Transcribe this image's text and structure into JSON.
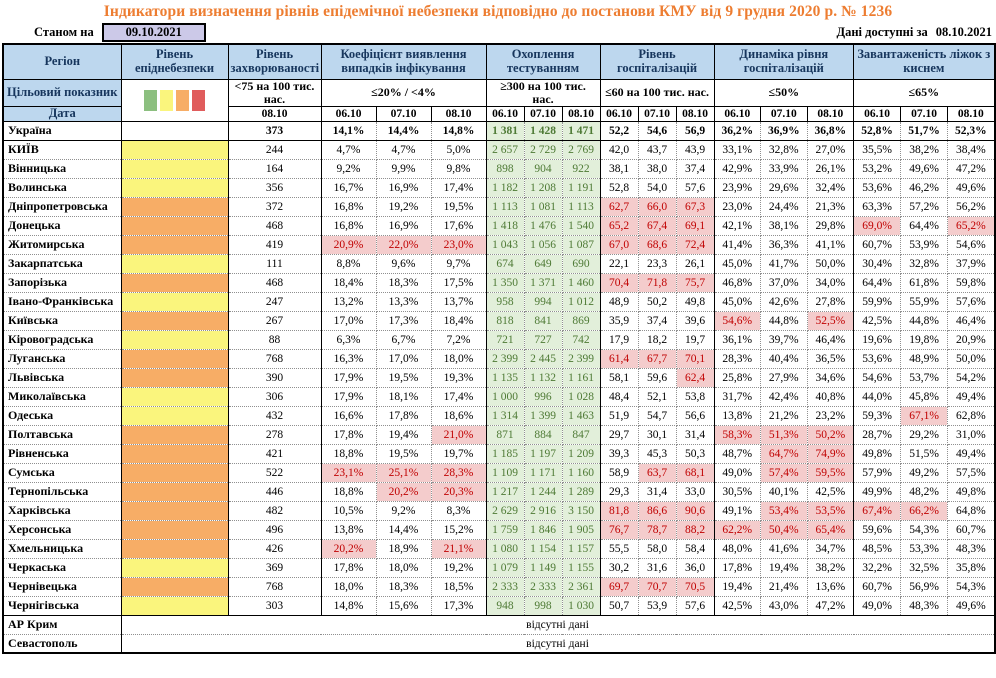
{
  "title": "Індикатори визначення рівнів епідемічної небезпеки відповідно до постанови КМУ від 9 грудня 2020 р. № 1236",
  "as_of": {
    "label": "Станом на",
    "date": "09.10.2021"
  },
  "available": {
    "label": "Дані доступні за",
    "date": "08.10.2021"
  },
  "no_data_text": "відсутні дані",
  "colors": {
    "title_orange": "#ED7D31",
    "header_bg": "#BDD7EE",
    "header_text": "#17365D",
    "as_of_box_bg": "#CCC9E8",
    "level_yellow": "#FAF57D",
    "level_orange": "#F7AD66",
    "legend_green": "#8CBF7F",
    "legend_red": "#E05C5C",
    "testing_bg": "#E2EFDA",
    "testing_text": "#4E7A35",
    "alert_bg": "#F4CCCC",
    "alert_text": "#C00000"
  },
  "header": {
    "region": "Регіон",
    "target_label": "Цільовий показник",
    "date_label": "Дата",
    "legend_swatches": [
      "green",
      "yellow",
      "orange",
      "red"
    ],
    "sections": [
      {
        "title": "Рівень епіднебезпеки",
        "target": "",
        "dates": []
      },
      {
        "title": "Рівень захворюваності",
        "target": "<75 на 100 тис. нас.",
        "dates": [
          "08.10"
        ]
      },
      {
        "title": "Коефіцієнт виявлення випадків інфікування",
        "target": "≤20% / <4%",
        "dates": [
          "06.10",
          "07.10",
          "08.10"
        ]
      },
      {
        "title": "Охоплення тестуванням",
        "target": "≥300 на 100 тис. нас.",
        "dates": [
          "06.10",
          "07.10",
          "08.10"
        ]
      },
      {
        "title": "Рівень госпіталізацій",
        "target": "≤60 на 100 тис. нас.",
        "dates": [
          "06.10",
          "07.10",
          "08.10"
        ]
      },
      {
        "title": "Динаміка рівня госпіталізацій",
        "target": "≤50%",
        "dates": [
          "06.10",
          "07.10",
          "08.10"
        ]
      },
      {
        "title": "Завантаженість ліжок з киснем",
        "target": "≤65%",
        "dates": [
          "06.10",
          "07.10",
          "08.10"
        ]
      }
    ]
  },
  "rows": [
    {
      "region": "Україна",
      "bold": true,
      "solid_bottom": true,
      "level": "none",
      "morbidity": "373",
      "coef": [
        "14,1%",
        "14,4%",
        "14,8%"
      ],
      "test": [
        "1 381",
        "1 428",
        "1 471"
      ],
      "hosp": [
        "52,2",
        "54,6",
        "56,9"
      ],
      "dyn": [
        "36,2%",
        "36,9%",
        "36,8%"
      ],
      "beds": [
        "52,8%",
        "51,7%",
        "52,3%"
      ]
    },
    {
      "region": "КИЇВ",
      "level": "yellow",
      "morbidity": "244",
      "coef": [
        "4,7%",
        "4,7%",
        "5,0%"
      ],
      "test": [
        "2 657",
        "2 729",
        "2 769"
      ],
      "hosp": [
        "42,0",
        "43,7",
        "43,9"
      ],
      "dyn": [
        "33,1%",
        "32,8%",
        "27,0%"
      ],
      "beds": [
        "35,5%",
        "38,2%",
        "38,4%"
      ]
    },
    {
      "region": "Вінницька",
      "level": "yellow",
      "morbidity": "164",
      "coef": [
        "9,2%",
        "9,9%",
        "9,8%"
      ],
      "test": [
        "898",
        "904",
        "922"
      ],
      "hosp": [
        "38,1",
        "38,0",
        "37,4"
      ],
      "dyn": [
        "42,9%",
        "33,9%",
        "26,1%"
      ],
      "beds": [
        "53,2%",
        "49,6%",
        "47,2%"
      ]
    },
    {
      "region": "Волинська",
      "level": "yellow",
      "morbidity": "356",
      "coef": [
        "16,7%",
        "16,9%",
        "17,4%"
      ],
      "test": [
        "1 182",
        "1 208",
        "1 191"
      ],
      "hosp": [
        "52,8",
        "54,0",
        "57,6"
      ],
      "dyn": [
        "23,9%",
        "29,6%",
        "32,4%"
      ],
      "beds": [
        "53,6%",
        "46,2%",
        "49,6%"
      ]
    },
    {
      "region": "Дніпропетровська",
      "level": "orange",
      "morbidity": "372",
      "coef": [
        "16,8%",
        "19,2%",
        "19,5%"
      ],
      "test": [
        "1 113",
        "1 081",
        "1 113"
      ],
      "hosp": [
        "62,7",
        "66,0",
        "67,3"
      ],
      "hosp_hl": [
        1,
        1,
        1
      ],
      "dyn": [
        "23,0%",
        "24,4%",
        "21,3%"
      ],
      "beds": [
        "63,3%",
        "57,2%",
        "56,2%"
      ]
    },
    {
      "region": "Донецька",
      "level": "orange",
      "morbidity": "468",
      "coef": [
        "16,8%",
        "16,9%",
        "17,6%"
      ],
      "test": [
        "1 418",
        "1 476",
        "1 540"
      ],
      "hosp": [
        "65,2",
        "67,4",
        "69,1"
      ],
      "hosp_hl": [
        1,
        1,
        1
      ],
      "dyn": [
        "42,1%",
        "38,1%",
        "29,8%"
      ],
      "beds": [
        "69,0%",
        "64,4%",
        "65,2%"
      ],
      "beds_hl": [
        1,
        0,
        1
      ]
    },
    {
      "region": "Житомирська",
      "level": "orange",
      "morbidity": "419",
      "coef": [
        "20,9%",
        "22,0%",
        "23,0%"
      ],
      "coef_hl": [
        1,
        1,
        1
      ],
      "test": [
        "1 043",
        "1 056",
        "1 087"
      ],
      "hosp": [
        "67,0",
        "68,6",
        "72,4"
      ],
      "hosp_hl": [
        1,
        1,
        1
      ],
      "dyn": [
        "41,4%",
        "36,3%",
        "41,1%"
      ],
      "beds": [
        "60,7%",
        "53,9%",
        "54,6%"
      ]
    },
    {
      "region": "Закарпатська",
      "level": "yellow",
      "morbidity": "111",
      "coef": [
        "8,8%",
        "9,6%",
        "9,7%"
      ],
      "test": [
        "674",
        "649",
        "690"
      ],
      "hosp": [
        "22,1",
        "23,3",
        "26,1"
      ],
      "dyn": [
        "45,0%",
        "41,7%",
        "50,0%"
      ],
      "beds": [
        "30,4%",
        "32,8%",
        "37,9%"
      ]
    },
    {
      "region": "Запорізька",
      "level": "orange",
      "morbidity": "468",
      "coef": [
        "18,4%",
        "18,3%",
        "17,5%"
      ],
      "test": [
        "1 350",
        "1 371",
        "1 460"
      ],
      "hosp": [
        "70,4",
        "71,8",
        "75,7"
      ],
      "hosp_hl": [
        1,
        1,
        1
      ],
      "dyn": [
        "46,8%",
        "37,0%",
        "34,0%"
      ],
      "beds": [
        "64,4%",
        "61,8%",
        "59,8%"
      ]
    },
    {
      "region": "Івано-Франківська",
      "level": "yellow",
      "morbidity": "247",
      "coef": [
        "13,2%",
        "13,3%",
        "13,7%"
      ],
      "test": [
        "958",
        "994",
        "1 012"
      ],
      "hosp": [
        "48,9",
        "50,2",
        "49,8"
      ],
      "dyn": [
        "45,0%",
        "42,6%",
        "27,8%"
      ],
      "beds": [
        "59,9%",
        "55,9%",
        "57,6%"
      ]
    },
    {
      "region": "Київська",
      "level": "orange",
      "morbidity": "267",
      "coef": [
        "17,0%",
        "17,3%",
        "18,4%"
      ],
      "test": [
        "818",
        "841",
        "869"
      ],
      "hosp": [
        "35,9",
        "37,4",
        "39,6"
      ],
      "dyn": [
        "54,6%",
        "44,8%",
        "52,5%"
      ],
      "dyn_hl": [
        1,
        0,
        1
      ],
      "beds": [
        "42,5%",
        "44,8%",
        "46,4%"
      ]
    },
    {
      "region": "Кіровоградська",
      "level": "yellow",
      "morbidity": "88",
      "coef": [
        "6,3%",
        "6,7%",
        "7,2%"
      ],
      "test": [
        "721",
        "727",
        "742"
      ],
      "hosp": [
        "17,9",
        "18,2",
        "19,7"
      ],
      "dyn": [
        "36,1%",
        "39,7%",
        "46,4%"
      ],
      "beds": [
        "19,6%",
        "19,8%",
        "20,9%"
      ]
    },
    {
      "region": "Луганська",
      "level": "orange",
      "morbidity": "768",
      "coef": [
        "16,3%",
        "17,0%",
        "18,0%"
      ],
      "test": [
        "2 399",
        "2 445",
        "2 399"
      ],
      "hosp": [
        "61,4",
        "67,7",
        "70,1"
      ],
      "hosp_hl": [
        1,
        1,
        1
      ],
      "dyn": [
        "28,3%",
        "40,4%",
        "36,5%"
      ],
      "beds": [
        "53,6%",
        "48,9%",
        "50,0%"
      ]
    },
    {
      "region": "Львівська",
      "level": "orange",
      "morbidity": "390",
      "coef": [
        "17,9%",
        "19,5%",
        "19,3%"
      ],
      "test": [
        "1 135",
        "1 132",
        "1 161"
      ],
      "hosp": [
        "58,1",
        "59,6",
        "62,4"
      ],
      "hosp_hl": [
        0,
        0,
        1
      ],
      "dyn": [
        "25,8%",
        "27,9%",
        "34,6%"
      ],
      "beds": [
        "54,6%",
        "53,7%",
        "54,2%"
      ]
    },
    {
      "region": "Миколаївська",
      "level": "yellow",
      "morbidity": "306",
      "coef": [
        "17,9%",
        "18,1%",
        "17,4%"
      ],
      "test": [
        "1 000",
        "996",
        "1 028"
      ],
      "hosp": [
        "48,4",
        "52,1",
        "53,8"
      ],
      "dyn": [
        "31,7%",
        "42,4%",
        "40,8%"
      ],
      "beds": [
        "44,0%",
        "45,8%",
        "49,4%"
      ]
    },
    {
      "region": "Одеська",
      "level": "yellow",
      "morbidity": "432",
      "coef": [
        "16,6%",
        "17,8%",
        "18,6%"
      ],
      "test": [
        "1 314",
        "1 399",
        "1 463"
      ],
      "hosp": [
        "51,9",
        "54,7",
        "56,6"
      ],
      "dyn": [
        "13,8%",
        "21,2%",
        "23,2%"
      ],
      "beds": [
        "59,3%",
        "67,1%",
        "62,8%"
      ],
      "beds_hl": [
        0,
        1,
        0
      ]
    },
    {
      "region": "Полтавська",
      "level": "orange",
      "morbidity": "278",
      "coef": [
        "17,8%",
        "19,4%",
        "21,0%"
      ],
      "coef_hl": [
        0,
        0,
        1
      ],
      "test": [
        "871",
        "884",
        "847"
      ],
      "hosp": [
        "29,7",
        "30,1",
        "31,4"
      ],
      "dyn": [
        "58,3%",
        "51,3%",
        "50,2%"
      ],
      "dyn_hl": [
        1,
        1,
        1
      ],
      "beds": [
        "28,7%",
        "29,2%",
        "31,0%"
      ]
    },
    {
      "region": "Рівненська",
      "level": "orange",
      "morbidity": "421",
      "coef": [
        "18,8%",
        "19,5%",
        "19,7%"
      ],
      "test": [
        "1 185",
        "1 197",
        "1 209"
      ],
      "hosp": [
        "39,3",
        "45,3",
        "50,3"
      ],
      "dyn": [
        "48,7%",
        "64,7%",
        "74,9%"
      ],
      "dyn_hl": [
        0,
        1,
        1
      ],
      "beds": [
        "49,8%",
        "51,5%",
        "49,4%"
      ]
    },
    {
      "region": "Сумська",
      "level": "orange",
      "morbidity": "522",
      "coef": [
        "23,1%",
        "25,1%",
        "28,3%"
      ],
      "coef_hl": [
        1,
        1,
        1
      ],
      "test": [
        "1 109",
        "1 171",
        "1 160"
      ],
      "hosp": [
        "58,9",
        "63,7",
        "68,1"
      ],
      "hosp_hl": [
        0,
        1,
        1
      ],
      "dyn": [
        "49,0%",
        "57,4%",
        "59,5%"
      ],
      "dyn_hl": [
        0,
        1,
        1
      ],
      "beds": [
        "57,9%",
        "49,2%",
        "57,5%"
      ]
    },
    {
      "region": "Тернопільська",
      "level": "orange",
      "morbidity": "446",
      "coef": [
        "18,8%",
        "20,2%",
        "20,3%"
      ],
      "coef_hl": [
        0,
        1,
        1
      ],
      "test": [
        "1 217",
        "1 244",
        "1 289"
      ],
      "hosp": [
        "29,3",
        "31,4",
        "33,0"
      ],
      "dyn": [
        "30,5%",
        "40,1%",
        "42,5%"
      ],
      "beds": [
        "49,9%",
        "48,2%",
        "49,8%"
      ]
    },
    {
      "region": "Харківська",
      "level": "orange",
      "morbidity": "482",
      "coef": [
        "10,5%",
        "9,2%",
        "8,3%"
      ],
      "test": [
        "2 629",
        "2 916",
        "3 150"
      ],
      "hosp": [
        "81,8",
        "86,6",
        "90,6"
      ],
      "hosp_hl": [
        1,
        1,
        1
      ],
      "dyn": [
        "49,1%",
        "53,4%",
        "53,5%"
      ],
      "dyn_hl": [
        0,
        1,
        1
      ],
      "beds": [
        "67,4%",
        "66,2%",
        "64,8%"
      ],
      "beds_hl": [
        1,
        1,
        0
      ]
    },
    {
      "region": "Херсонська",
      "level": "orange",
      "morbidity": "496",
      "coef": [
        "13,8%",
        "14,4%",
        "15,2%"
      ],
      "test": [
        "1 759",
        "1 846",
        "1 905"
      ],
      "hosp": [
        "76,7",
        "78,7",
        "88,2"
      ],
      "hosp_hl": [
        1,
        1,
        1
      ],
      "dyn": [
        "62,2%",
        "50,4%",
        "65,4%"
      ],
      "dyn_hl": [
        1,
        1,
        1
      ],
      "beds": [
        "59,6%",
        "54,3%",
        "60,7%"
      ]
    },
    {
      "region": "Хмельницька",
      "level": "orange",
      "morbidity": "426",
      "coef": [
        "20,2%",
        "18,9%",
        "21,1%"
      ],
      "coef_hl": [
        1,
        0,
        1
      ],
      "test": [
        "1 080",
        "1 154",
        "1 157"
      ],
      "hosp": [
        "55,5",
        "58,0",
        "58,4"
      ],
      "dyn": [
        "48,0%",
        "41,6%",
        "34,7%"
      ],
      "beds": [
        "48,5%",
        "53,3%",
        "48,3%"
      ]
    },
    {
      "region": "Черкаська",
      "level": "yellow",
      "morbidity": "369",
      "coef": [
        "17,8%",
        "18,0%",
        "19,2%"
      ],
      "test": [
        "1 079",
        "1 149",
        "1 155"
      ],
      "hosp": [
        "30,2",
        "31,6",
        "36,0"
      ],
      "dyn": [
        "17,8%",
        "19,4%",
        "38,2%"
      ],
      "beds": [
        "32,2%",
        "32,5%",
        "35,8%"
      ]
    },
    {
      "region": "Чернівецька",
      "level": "orange",
      "morbidity": "768",
      "coef": [
        "18,0%",
        "18,3%",
        "18,5%"
      ],
      "test": [
        "2 333",
        "2 333",
        "2 361"
      ],
      "hosp": [
        "69,7",
        "70,7",
        "70,5"
      ],
      "hosp_hl": [
        1,
        1,
        1
      ],
      "dyn": [
        "19,4%",
        "21,4%",
        "13,6%"
      ],
      "beds": [
        "60,7%",
        "56,9%",
        "54,3%"
      ]
    },
    {
      "region": "Чернігівська",
      "level": "yellow",
      "solid_bottom": true,
      "morbidity": "303",
      "coef": [
        "14,8%",
        "15,6%",
        "17,3%"
      ],
      "test": [
        "948",
        "998",
        "1 030"
      ],
      "hosp": [
        "50,7",
        "53,9",
        "57,6"
      ],
      "dyn": [
        "42,5%",
        "43,0%",
        "47,2%"
      ],
      "beds": [
        "49,0%",
        "48,3%",
        "49,6%"
      ]
    },
    {
      "region": "АР Крим",
      "level": "nodata"
    },
    {
      "region": "Севастополь",
      "level": "nodata"
    }
  ]
}
